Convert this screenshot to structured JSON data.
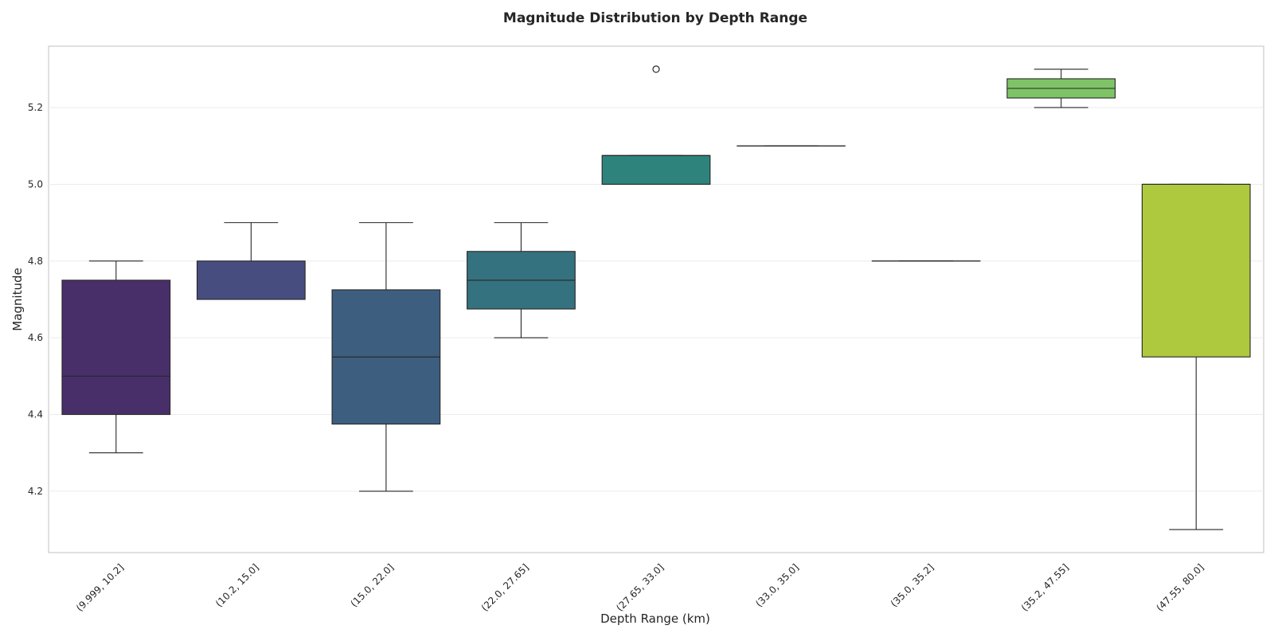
{
  "chart_data": {
    "type": "box",
    "title": "Magnitude Distribution by Depth Range",
    "xlabel": "Depth Range (km)",
    "ylabel": "Magnitude",
    "ylim": [
      4.04,
      5.36
    ],
    "yticks": [
      4.2,
      4.4,
      4.6,
      4.8,
      5.0,
      5.2
    ],
    "ytick_labels": [
      "4.2",
      "4.4",
      "4.6",
      "4.8",
      "5.0",
      "5.2"
    ],
    "grid": "horizontal",
    "categories": [
      "(9.999, 10.2]",
      "(10.2, 15.0]",
      "(15.0, 22.0]",
      "(22.0, 27.65]",
      "(27.65, 33.0]",
      "(33.0, 35.0]",
      "(35.0, 35.2]",
      "(35.2, 47.55]",
      "(47.55, 80.0]"
    ],
    "boxes": [
      {
        "whislo": 4.3,
        "q1": 4.4,
        "med": 4.5,
        "q3": 4.75,
        "whishi": 4.8,
        "fliers": [],
        "color": "#482f6a"
      },
      {
        "whislo": 4.7,
        "q1": 4.7,
        "med": 4.7,
        "q3": 4.8,
        "whishi": 4.9,
        "fliers": [],
        "color": "#484d80"
      },
      {
        "whislo": 4.2,
        "q1": 4.375,
        "med": 4.55,
        "q3": 4.725,
        "whishi": 4.9,
        "fliers": [],
        "color": "#3e5e80"
      },
      {
        "whislo": 4.6,
        "q1": 4.675,
        "med": 4.75,
        "q3": 4.825,
        "whishi": 4.9,
        "fliers": [],
        "color": "#35727f"
      },
      {
        "whislo": 5.0,
        "q1": 5.0,
        "med": 5.075,
        "q3": 5.075,
        "whishi": 5.075,
        "fliers": [
          5.3
        ],
        "color": "#2e847c"
      },
      {
        "whislo": 5.1,
        "q1": 5.1,
        "med": 5.1,
        "q3": 5.1,
        "whishi": 5.1,
        "fliers": [],
        "color": "#2d9a78"
      },
      {
        "whislo": 4.8,
        "q1": 4.8,
        "med": 4.8,
        "q3": 4.8,
        "whishi": 4.8,
        "fliers": [],
        "color": "#4fb171"
      },
      {
        "whislo": 5.2,
        "q1": 5.225,
        "med": 5.25,
        "q3": 5.275,
        "whishi": 5.3,
        "fliers": [],
        "color": "#7ec466"
      },
      {
        "whislo": 4.1,
        "q1": 4.55,
        "med": 5.0,
        "q3": 5.0,
        "whishi": 5.0,
        "fliers": [],
        "color": "#aec93e"
      }
    ]
  }
}
